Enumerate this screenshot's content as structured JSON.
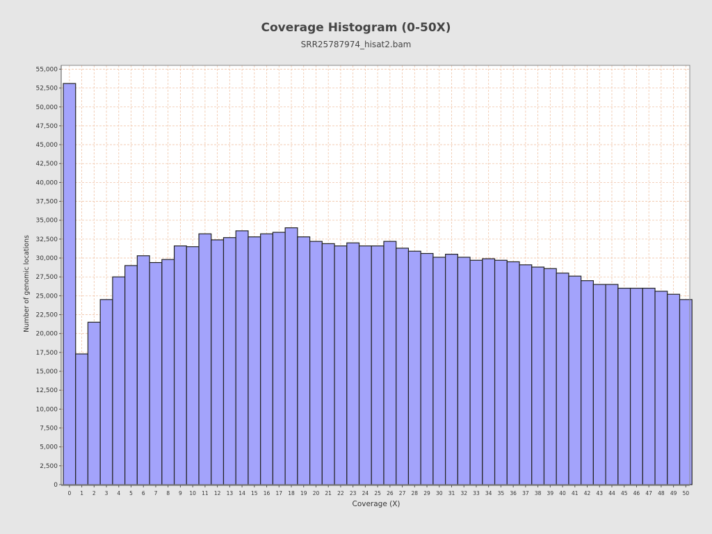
{
  "chart_data": {
    "type": "bar",
    "title": "Coverage Histogram (0-50X)",
    "subtitle": "SRR25787974_hisat2.bam",
    "xlabel": "Coverage (X)",
    "ylabel": "Number of genomic locations",
    "ylim": [
      0,
      55500
    ],
    "ytick_step": 2500,
    "grid": true,
    "categories": [
      "0",
      "1",
      "2",
      "3",
      "4",
      "5",
      "6",
      "7",
      "8",
      "9",
      "10",
      "11",
      "12",
      "13",
      "14",
      "15",
      "16",
      "17",
      "18",
      "19",
      "20",
      "21",
      "22",
      "23",
      "24",
      "25",
      "26",
      "27",
      "28",
      "29",
      "30",
      "31",
      "32",
      "33",
      "34",
      "35",
      "36",
      "37",
      "38",
      "39",
      "40",
      "41",
      "42",
      "43",
      "44",
      "45",
      "46",
      "47",
      "48",
      "49",
      "50"
    ],
    "values": [
      53100,
      17300,
      21500,
      24500,
      27500,
      29000,
      30300,
      29400,
      29800,
      31600,
      31500,
      33200,
      32400,
      32700,
      33600,
      32800,
      33200,
      33400,
      34000,
      32800,
      32200,
      31900,
      31600,
      32000,
      31600,
      31600,
      32200,
      31300,
      30900,
      30600,
      30100,
      30500,
      30100,
      29700,
      29900,
      29700,
      29500,
      29100,
      28800,
      28600,
      28000,
      27600,
      27000,
      26500,
      26500,
      26000,
      26000,
      26000,
      25600,
      25200,
      24500
    ]
  },
  "colors": {
    "bar_fill": "#a3a3fb",
    "bar_stroke": "#222222",
    "grid": "#f0c4a8",
    "plot_bg": "#ffffff",
    "page_bg": "#e6e6e6"
  }
}
